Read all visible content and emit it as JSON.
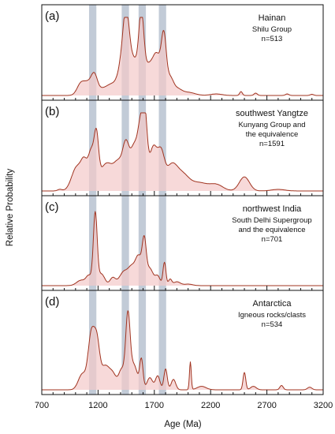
{
  "chart_data": {
    "type": "area",
    "xlabel": "Age (Ma)",
    "ylabel": "Relative Probability",
    "xlim": [
      700,
      3200
    ],
    "x_tick_labels": [
      "700",
      "1200",
      "1700",
      "2200",
      "2700",
      "3200"
    ],
    "x_tick_values": [
      700,
      1200,
      1700,
      2200,
      2700,
      3200
    ],
    "highlight_bands": [
      [
        1120,
        1185
      ],
      [
        1410,
        1475
      ],
      [
        1560,
        1625
      ],
      [
        1740,
        1805
      ]
    ],
    "line_color": "#a0331f",
    "fill_color": "#f3c9c9",
    "band_color": "#aeb9c9",
    "panels": [
      {
        "label": "(a)",
        "title_lines": [
          "Hainan",
          "Shilu Group",
          "n=513"
        ],
        "peaks": [
          [
            1050,
            0.16,
            35
          ],
          [
            1110,
            0.12,
            30
          ],
          [
            1165,
            0.24,
            28
          ],
          [
            1240,
            0.08,
            55
          ],
          [
            1330,
            0.12,
            45
          ],
          [
            1410,
            0.32,
            35
          ],
          [
            1450,
            0.78,
            28
          ],
          [
            1520,
            0.45,
            50
          ],
          [
            1585,
            0.82,
            22
          ],
          [
            1640,
            0.3,
            35
          ],
          [
            1720,
            0.52,
            40
          ],
          [
            1785,
            0.66,
            22
          ],
          [
            1840,
            0.2,
            28
          ],
          [
            1900,
            0.08,
            40
          ],
          [
            2000,
            0.04,
            60
          ],
          [
            2250,
            0.02,
            50
          ],
          [
            2470,
            0.05,
            12
          ],
          [
            2600,
            0.03,
            15
          ],
          [
            2880,
            0.02,
            15
          ],
          [
            3100,
            0.015,
            15
          ]
        ]
      },
      {
        "label": "(b)",
        "title_lines": [
          "southwest Yangtze",
          "Kunyang Group and",
          "the equivalence",
          "n=1591"
        ],
        "peaks": [
          [
            860,
            0.02,
            20
          ],
          [
            1010,
            0.3,
            45
          ],
          [
            1080,
            0.32,
            30
          ],
          [
            1140,
            0.45,
            25
          ],
          [
            1185,
            0.62,
            20
          ],
          [
            1240,
            0.22,
            40
          ],
          [
            1300,
            0.24,
            40
          ],
          [
            1380,
            0.34,
            40
          ],
          [
            1450,
            0.55,
            30
          ],
          [
            1520,
            0.52,
            30
          ],
          [
            1575,
            0.7,
            25
          ],
          [
            1615,
            0.88,
            22
          ],
          [
            1690,
            0.55,
            35
          ],
          [
            1760,
            0.42,
            30
          ],
          [
            1850,
            0.3,
            50
          ],
          [
            1950,
            0.2,
            60
          ],
          [
            2100,
            0.1,
            70
          ],
          [
            2250,
            0.08,
            60
          ],
          [
            2500,
            0.18,
            45
          ],
          [
            2800,
            0.02,
            60
          ]
        ]
      },
      {
        "label": "(c)",
        "title_lines": [
          "northwest India",
          "South Delhi Supergroup",
          "and the equivalence",
          "n=701"
        ],
        "peaks": [
          [
            1050,
            0.07,
            40
          ],
          [
            1120,
            0.12,
            25
          ],
          [
            1175,
            0.92,
            17
          ],
          [
            1230,
            0.15,
            30
          ],
          [
            1330,
            0.1,
            25
          ],
          [
            1430,
            0.18,
            40
          ],
          [
            1500,
            0.2,
            30
          ],
          [
            1560,
            0.36,
            28
          ],
          [
            1610,
            0.52,
            18
          ],
          [
            1660,
            0.22,
            30
          ],
          [
            1730,
            0.12,
            22
          ],
          [
            1790,
            0.3,
            13
          ],
          [
            1840,
            0.08,
            15
          ],
          [
            1900,
            0.05,
            30
          ],
          [
            2000,
            0.02,
            40
          ]
        ]
      },
      {
        "label": "(d)",
        "title_lines": [
          "Antarctica",
          "Igneous rocks/clasts",
          "n=534"
        ],
        "peaks": [
          [
            1060,
            0.18,
            35
          ],
          [
            1140,
            0.62,
            28
          ],
          [
            1190,
            0.5,
            25
          ],
          [
            1260,
            0.25,
            35
          ],
          [
            1330,
            0.18,
            35
          ],
          [
            1410,
            0.22,
            25
          ],
          [
            1465,
            0.84,
            20
          ],
          [
            1520,
            0.28,
            30
          ],
          [
            1585,
            0.34,
            15
          ],
          [
            1660,
            0.14,
            25
          ],
          [
            1730,
            0.16,
            20
          ],
          [
            1800,
            0.24,
            15
          ],
          [
            1870,
            0.12,
            20
          ],
          [
            2020,
            0.32,
            8
          ],
          [
            2120,
            0.04,
            40
          ],
          [
            2500,
            0.2,
            12
          ],
          [
            2580,
            0.04,
            25
          ],
          [
            2830,
            0.05,
            15
          ],
          [
            3080,
            0.03,
            20
          ]
        ]
      }
    ]
  }
}
